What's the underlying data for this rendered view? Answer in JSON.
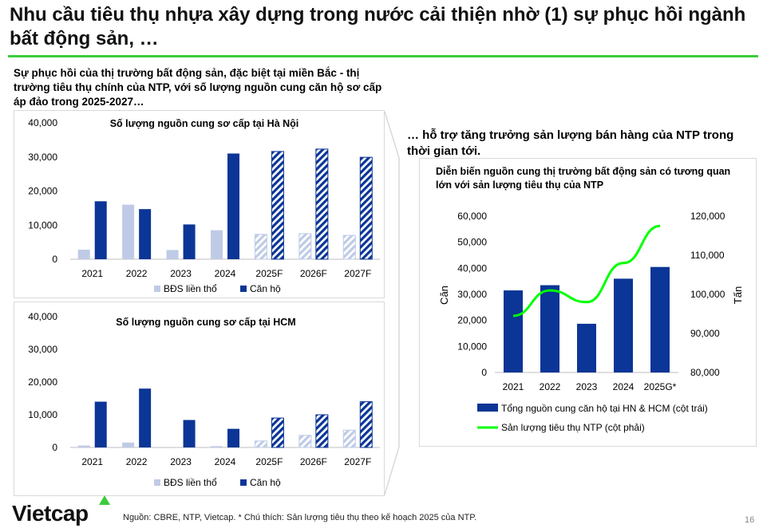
{
  "page": {
    "title": "Nhu cầu tiêu thụ nhựa xây dựng trong nước cải thiện nhờ (1) sự phục hồi ngành bất động sản, …",
    "intro_left": "Sự phục hồi của thị trường bất động sản, đặc biệt tại miền Bắc - thị trường tiêu thụ chính của NTP, với số lượng nguồn cung căn hộ sơ cấp áp đảo trong 2025-2027…",
    "intro_right": "… hỗ trợ tăng trưởng sản lượng bán hàng của NTP trong thời gian tới.",
    "source": "Nguồn: CBRE, NTP, Vietcap. * Chú thích: Sản lượng tiêu thụ theo kế hoạch 2025 của NTP.",
    "page_number": "16",
    "logo": "Vietcap",
    "colors": {
      "accent_green": "#3ccc3c",
      "navy": "#0b3596",
      "light_blue": "#bfcbe6",
      "line_green": "#00ff00"
    }
  },
  "chart_data": [
    {
      "type": "bar",
      "title": "Số lượng nguồn cung sơ cấp tại Hà Nội",
      "categories": [
        "2021",
        "2022",
        "2023",
        "2024",
        "2025F",
        "2026F",
        "2027F"
      ],
      "hatched_from_index": 4,
      "series": [
        {
          "name": "BĐS liền thổ",
          "values": [
            2800,
            16000,
            2700,
            8500,
            7300,
            7500,
            7000
          ]
        },
        {
          "name": "Căn hộ",
          "values": [
            17000,
            14700,
            10200,
            31000,
            31600,
            32300,
            29900
          ]
        }
      ],
      "ylim": [
        0,
        40000
      ],
      "yticks": [
        "40,000",
        "30,000",
        "20,000",
        "10,000",
        "0"
      ],
      "legend": "bottom"
    },
    {
      "type": "bar",
      "title": "Số lượng nguồn cung sơ cấp tại HCM",
      "categories": [
        "2021",
        "2022",
        "2023",
        "2024",
        "2025F",
        "2026F",
        "2027F"
      ],
      "hatched_from_index": 4,
      "series": [
        {
          "name": "BĐS liền thổ",
          "values": [
            600,
            1500,
            0,
            400,
            2000,
            3700,
            5300
          ]
        },
        {
          "name": "Căn hộ",
          "values": [
            14000,
            18000,
            8400,
            5700,
            9000,
            10000,
            14000
          ]
        }
      ],
      "ylim": [
        0,
        40000
      ],
      "yticks": [
        "40,000",
        "30,000",
        "20,000",
        "10,000",
        "0"
      ],
      "legend": "bottom"
    },
    {
      "type": "bar",
      "title": "Diễn biến nguồn cung thị trường bất động sản có tương quan lớn với sản lượng tiêu thụ của NTP",
      "categories": [
        "2021",
        "2022",
        "2023",
        "2024",
        "2025G*"
      ],
      "series": [
        {
          "name": "Tổng nguồn cung căn hộ tại HN & HCM (cột trái)",
          "type": "bar",
          "values": [
            31500,
            33500,
            18700,
            36000,
            40500
          ]
        },
        {
          "name": "Sản lượng tiêu thụ NTP (cột phải)",
          "type": "line",
          "values": [
            94500,
            101000,
            98000,
            108000,
            117500
          ]
        }
      ],
      "ylabel": "Căn",
      "ylabel_right": "Tấn",
      "ylim": [
        0,
        60000
      ],
      "ylim_right": [
        80000,
        120000
      ],
      "yticks": [
        "60,000",
        "50,000",
        "40,000",
        "30,000",
        "20,000",
        "10,000",
        "0"
      ],
      "yticks_right": [
        "120,000",
        "110,000",
        "100,000",
        "90,000",
        "80,000"
      ],
      "legend": "bottom"
    }
  ]
}
